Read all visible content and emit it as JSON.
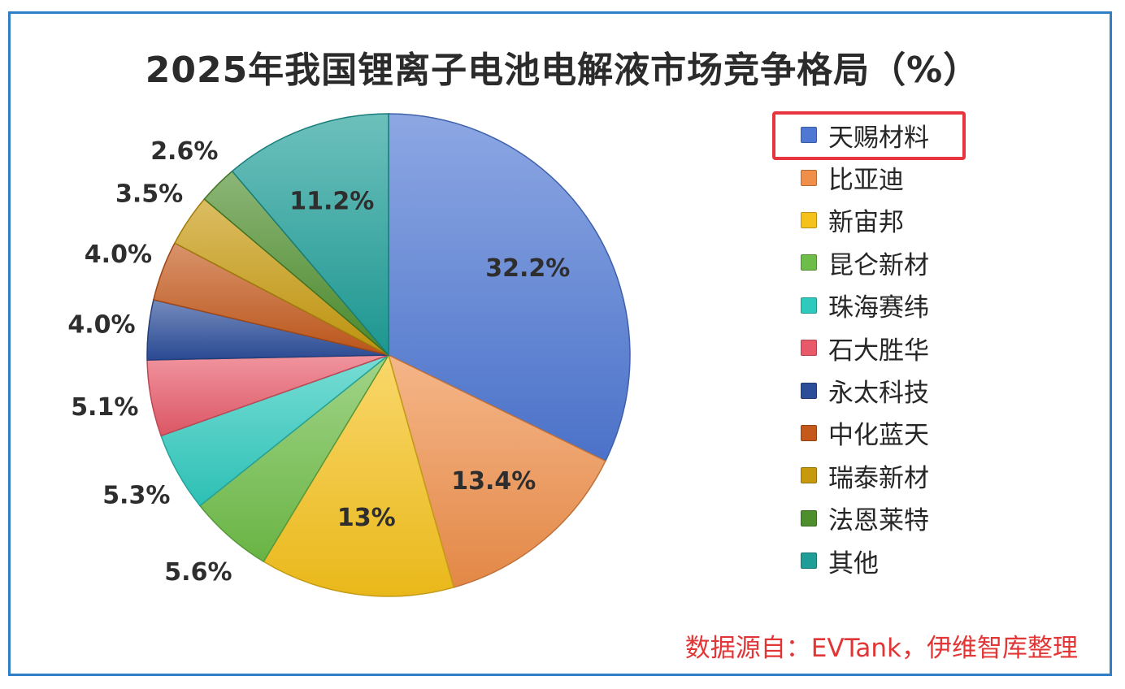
{
  "title": "2025年我国锂离子电池电解液市场竞争格局（%）",
  "source": "数据源自：EVTank，伊维智库整理",
  "chart_data": {
    "type": "pie",
    "title": "2025年我国锂离子电池电解液市场竞争格局（%）",
    "start_angle": "12 o'clock, clockwise",
    "legend_position": "right",
    "highlighted_legend_entry": "天赐材料",
    "slices": [
      {
        "name": "天赐材料",
        "value": 32.2,
        "label": "32.2%",
        "color": "#4f78d4",
        "label_inside": true
      },
      {
        "name": "比亚迪",
        "value": 13.4,
        "label": "13.4%",
        "color": "#ef8f4a",
        "label_inside": true
      },
      {
        "name": "新宙邦",
        "value": 13,
        "label": "13%",
        "color": "#f5c21b",
        "label_inside": true
      },
      {
        "name": "昆仑新材",
        "value": 5.6,
        "label": "5.6%",
        "color": "#6ebd48",
        "label_inside": false
      },
      {
        "name": "珠海赛纬",
        "value": 5.3,
        "label": "5.3%",
        "color": "#2fcabe",
        "label_inside": false
      },
      {
        "name": "石大胜华",
        "value": 5.1,
        "label": "5.1%",
        "color": "#e85a6a",
        "label_inside": false
      },
      {
        "name": "永太科技",
        "value": 4.0,
        "label": "4.0%",
        "color": "#2b4d9a",
        "label_inside": false
      },
      {
        "name": "中化蓝天",
        "value": 4.0,
        "label": "4.0%",
        "color": "#c4591b",
        "label_inside": false
      },
      {
        "name": "瑞泰新材",
        "value": 3.5,
        "label": "3.5%",
        "color": "#c79a0e",
        "label_inside": false
      },
      {
        "name": "法恩莱特",
        "value": 2.6,
        "label": "2.6%",
        "color": "#4e8f2d",
        "label_inside": false
      },
      {
        "name": "其他",
        "value": 11.2,
        "label": "11.2%",
        "color": "#1f9e98",
        "label_inside": true
      }
    ]
  }
}
